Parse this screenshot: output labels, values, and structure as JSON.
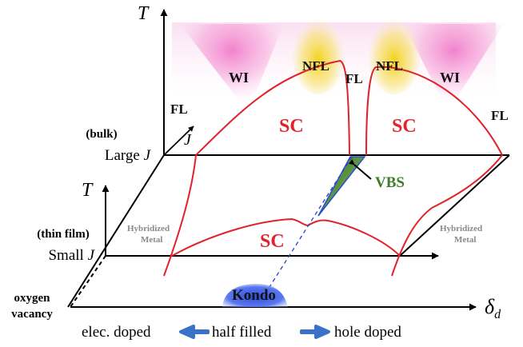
{
  "axes": {
    "t_upper": "T",
    "t_lower": "T",
    "j_label": "J",
    "delta": "δ",
    "delta_sub": "d"
  },
  "regions": {
    "wi_left": "WI",
    "wi_right": "WI",
    "nfl_left": "NFL",
    "nfl_right": "NFL",
    "fl_left": "FL",
    "fl_center": "FL",
    "fl_right": "FL",
    "sc_upper_left": "SC",
    "sc_upper_right": "SC",
    "sc_lower": "SC",
    "vbs": "VBS",
    "kondo": "Kondo",
    "hybrid_left_1": "Hybridized",
    "hybrid_left_2": "Metal",
    "hybrid_right_1": "Hybridized",
    "hybrid_right_2": "Metal"
  },
  "planes": {
    "bulk_tag": "(bulk)",
    "bulk_prefix": "Large ",
    "bulk_j": "J",
    "film_tag": "(thin film)",
    "film_prefix": "Small ",
    "film_j": "J",
    "oxygen_1": "oxygen",
    "oxygen_2": "vacancy"
  },
  "doping": {
    "elec": "elec. doped",
    "half": "half filled",
    "hole": "hole doped"
  },
  "colors": {
    "sc_line": "#e0222a",
    "wi_glow": "#f06fc4",
    "nfl_glow": "#f5d21a",
    "vbs_fill": "#3e7d2c",
    "kondo_fill": "#2f4fe0",
    "doping_arrow": "#3a72c8"
  }
}
